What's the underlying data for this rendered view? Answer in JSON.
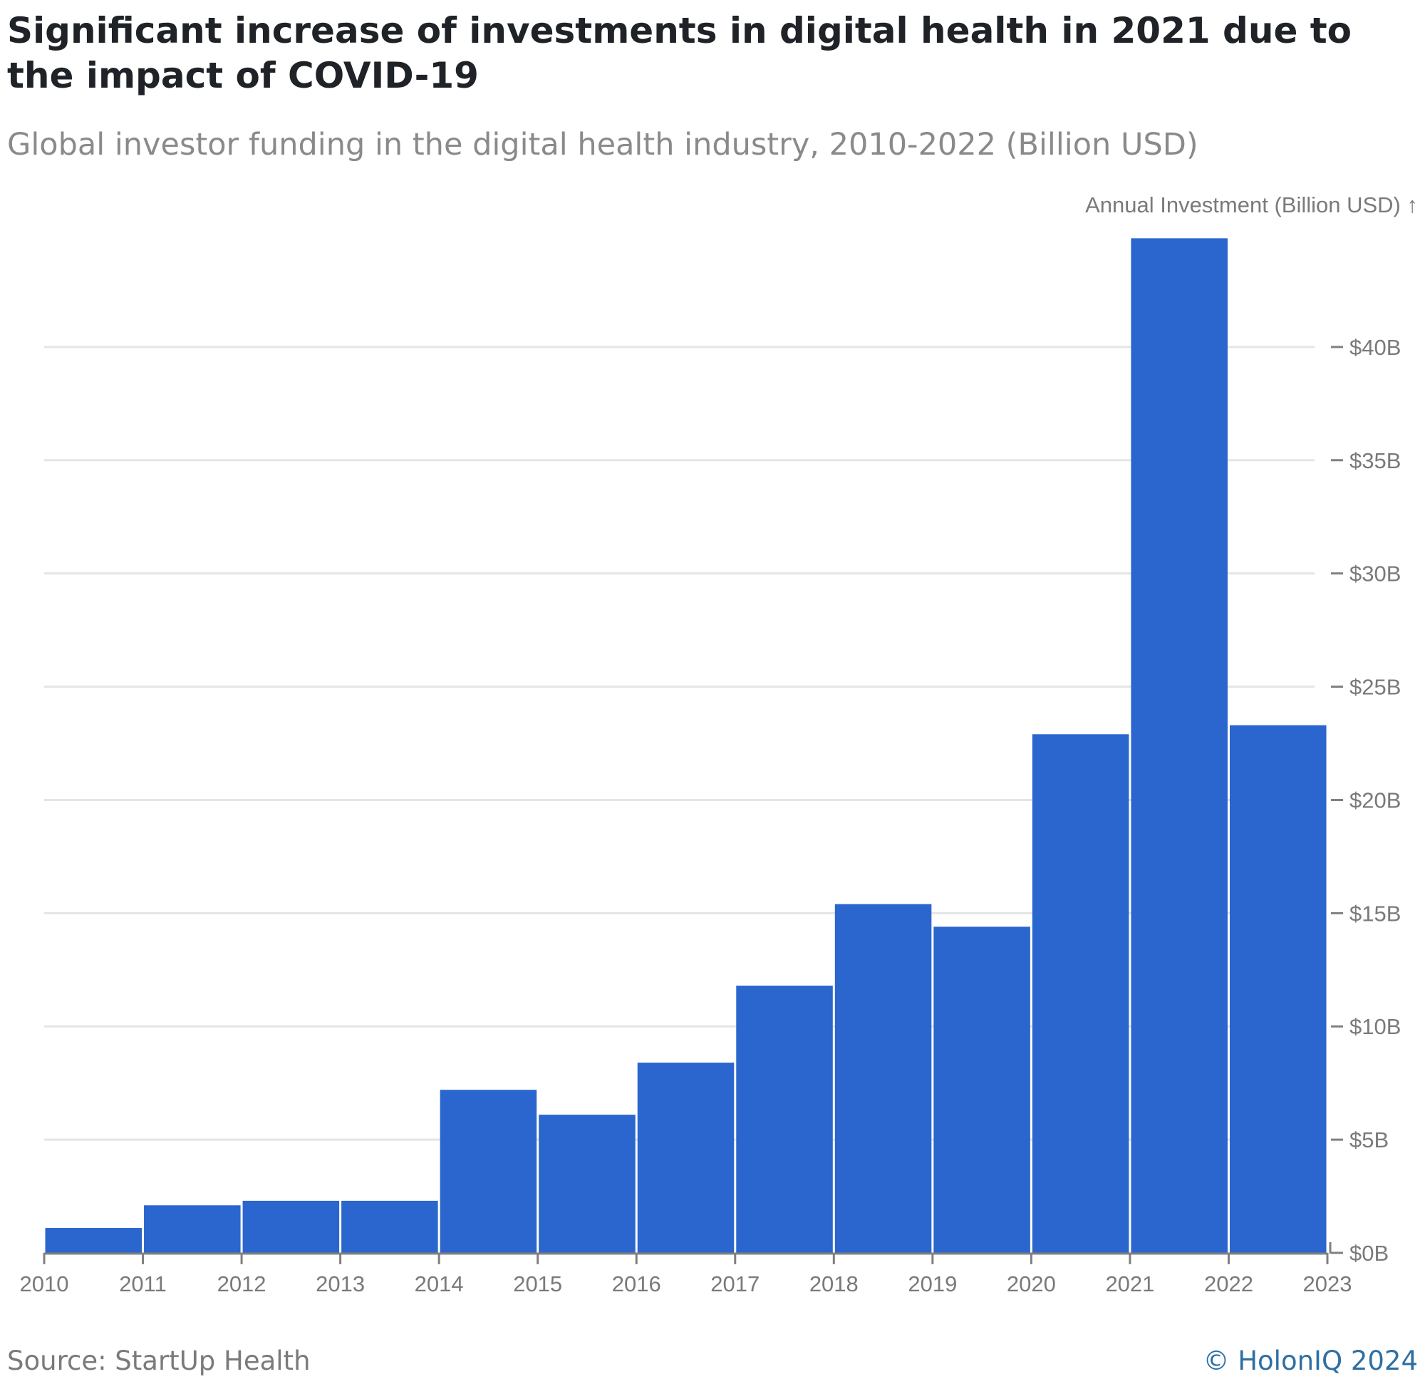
{
  "header": {
    "title": "Significant increase of investments in digital health in 2021 due to the impact of COVID-19",
    "subtitle": "Global investor funding in the digital health industry, 2010-2022 (Billion USD)"
  },
  "footer": {
    "source": "Source: StartUp Health",
    "copyright": "© HolonIQ 2024"
  },
  "colors": {
    "bar": "#2a66cd",
    "grid": "#e5e5e5",
    "axis": "#808080",
    "tick_text": "#7a7a7a"
  },
  "chart_data": {
    "type": "bar",
    "ylabel": "Annual Investment (Billion USD) ↑",
    "x_ticks": [
      "2010",
      "2011",
      "2012",
      "2013",
      "2014",
      "2015",
      "2016",
      "2017",
      "2018",
      "2019",
      "2020",
      "2021",
      "2022",
      "2023"
    ],
    "y_ticks": [
      0,
      5,
      10,
      15,
      20,
      25,
      30,
      35,
      40
    ],
    "y_tick_labels": [
      "$0B",
      "$5B",
      "$10B",
      "$15B",
      "$20B",
      "$25B",
      "$30B",
      "$35B",
      "$40B"
    ],
    "ylim": [
      0,
      45
    ],
    "xlim": [
      2010,
      2023
    ],
    "y_axis_position": "right",
    "grid": true,
    "bars": [
      {
        "x_start": 2010,
        "x_end": 2011,
        "value": 1.1
      },
      {
        "x_start": 2011,
        "x_end": 2012,
        "value": 2.1
      },
      {
        "x_start": 2012,
        "x_end": 2013,
        "value": 2.3
      },
      {
        "x_start": 2013,
        "x_end": 2014,
        "value": 2.3
      },
      {
        "x_start": 2014,
        "x_end": 2015,
        "value": 7.2
      },
      {
        "x_start": 2015,
        "x_end": 2016,
        "value": 6.1
      },
      {
        "x_start": 2016,
        "x_end": 2017,
        "value": 8.4
      },
      {
        "x_start": 2017,
        "x_end": 2018,
        "value": 11.8
      },
      {
        "x_start": 2018,
        "x_end": 2019,
        "value": 15.4
      },
      {
        "x_start": 2019,
        "x_end": 2020,
        "value": 14.4
      },
      {
        "x_start": 2020,
        "x_end": 2021,
        "value": 22.9
      },
      {
        "x_start": 2021,
        "x_end": 2022,
        "value": 44.8
      },
      {
        "x_start": 2022,
        "x_end": 2023,
        "value": 23.3
      }
    ]
  }
}
